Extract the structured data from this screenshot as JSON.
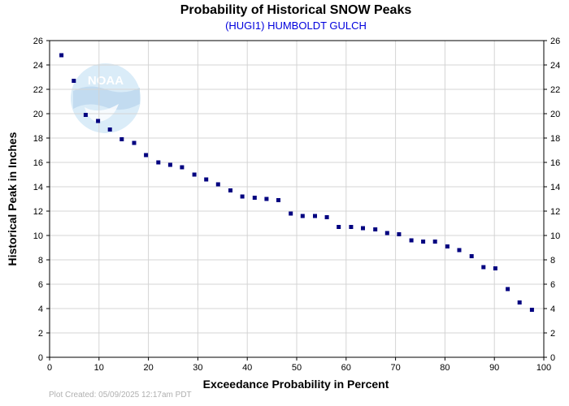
{
  "colors": {
    "point": "#000080",
    "subtitle": "#0000dd",
    "grid": "#d4d4d4",
    "logo_circle": "#d6eaf8",
    "logo_band": "#bcd8ef"
  },
  "logo": {
    "text": "NOAA",
    "icon": "noaa-logo-icon"
  },
  "credit": "Plot Created: 05/09/2025 12:17am PDT",
  "chart_data": {
    "type": "scatter",
    "title": "Probability of Historical SNOW Peaks",
    "subtitle": "(HUGI1) HUMBOLDT GULCH",
    "xlabel": "Exceedance Probability in Percent",
    "ylabel": "Historical Peak in Inches",
    "xlim": [
      0,
      100
    ],
    "ylim": [
      0,
      26
    ],
    "xticks": [
      0,
      10,
      20,
      30,
      40,
      50,
      60,
      70,
      80,
      90,
      100
    ],
    "yticks": [
      0,
      2,
      4,
      6,
      8,
      10,
      12,
      14,
      16,
      18,
      20,
      22,
      24,
      26
    ],
    "grid": true,
    "points": [
      [
        2.4,
        24.8
      ],
      [
        4.9,
        22.7
      ],
      [
        7.3,
        19.9
      ],
      [
        9.8,
        19.4
      ],
      [
        12.2,
        18.7
      ],
      [
        14.6,
        17.9
      ],
      [
        17.1,
        17.6
      ],
      [
        19.5,
        16.6
      ],
      [
        22.0,
        16.0
      ],
      [
        24.4,
        15.8
      ],
      [
        26.8,
        15.6
      ],
      [
        29.3,
        15.0
      ],
      [
        31.7,
        14.6
      ],
      [
        34.1,
        14.2
      ],
      [
        36.6,
        13.7
      ],
      [
        39.0,
        13.2
      ],
      [
        41.5,
        13.1
      ],
      [
        43.9,
        13.0
      ],
      [
        46.3,
        12.9
      ],
      [
        48.8,
        11.8
      ],
      [
        51.2,
        11.6
      ],
      [
        53.7,
        11.6
      ],
      [
        56.1,
        11.5
      ],
      [
        58.5,
        10.7
      ],
      [
        61.0,
        10.7
      ],
      [
        63.4,
        10.6
      ],
      [
        65.9,
        10.5
      ],
      [
        68.3,
        10.2
      ],
      [
        70.7,
        10.1
      ],
      [
        73.2,
        9.6
      ],
      [
        75.6,
        9.5
      ],
      [
        78.0,
        9.5
      ],
      [
        80.5,
        9.1
      ],
      [
        82.9,
        8.8
      ],
      [
        85.4,
        8.3
      ],
      [
        87.8,
        7.4
      ],
      [
        90.2,
        7.3
      ],
      [
        92.7,
        5.6
      ],
      [
        95.1,
        4.5
      ],
      [
        97.6,
        3.9
      ]
    ]
  }
}
